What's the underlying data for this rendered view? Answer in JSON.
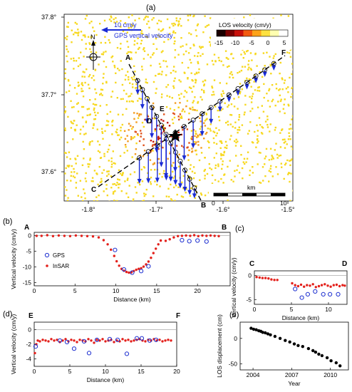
{
  "panel_labels": [
    "(a)",
    "(b)",
    "(c)",
    "(d)",
    "(e)"
  ],
  "map": {
    "north_label": "N",
    "gps_scale_label": "10 cm/y",
    "gps_legend_label": "GPS vertical velocity",
    "colorbar_title": "LOS velocity (cm/y)",
    "colorbar_ticks": [
      "-15",
      "-10",
      "-5",
      "0",
      "5"
    ],
    "colorbar_colors": [
      "#1a0000",
      "#7a0000",
      "#c8100a",
      "#f25a10",
      "#fda31a",
      "#fde140",
      "#ffffb0",
      "#ffffff"
    ],
    "scalebar_title": "km",
    "scalebar_ticks": [
      "0",
      "10"
    ],
    "x_ticks": [
      "-1.8°",
      "-1.7°",
      "-1.6°",
      "-1.5°"
    ],
    "y_ticks": [
      "37.8°",
      "37.7°",
      "37.6°"
    ],
    "profile_labels": [
      "A",
      "B",
      "C",
      "D",
      "E",
      "F"
    ],
    "background_color": "#ffffff",
    "field_color": "#f7d81e",
    "subsidence_color": "#c41a0c",
    "gps_arrow_color": "#1a2bd6"
  },
  "chart_data": [
    {
      "panel": "(b)",
      "type": "scatter",
      "profile": [
        "A",
        "B"
      ],
      "xlabel": "Distance (km)",
      "ylabel": "Vertical velocity (cm/y)",
      "xlim": [
        0,
        24
      ],
      "ylim": [
        -16,
        1
      ],
      "xticks": [
        0,
        5,
        10,
        15,
        20
      ],
      "yticks": [
        0,
        -5,
        -10,
        -15
      ],
      "legend": [
        "GPS",
        "InSAR"
      ],
      "series": [
        {
          "name": "InSAR",
          "x": [
            0.3,
            0.9,
            1.6,
            2.3,
            3.0,
            3.7,
            4.4,
            5.1,
            5.8,
            6.5,
            7.2,
            7.9,
            8.5,
            9.0,
            9.4,
            9.8,
            10.1,
            10.4,
            10.7,
            11.0,
            11.3,
            11.6,
            11.9,
            12.2,
            12.5,
            12.8,
            13.1,
            13.4,
            13.7,
            14.0,
            14.3,
            14.6,
            14.9,
            15.2,
            15.5,
            16.1,
            16.6,
            17.1,
            17.6,
            18.1,
            18.6,
            19.1,
            19.6,
            20.1,
            20.6,
            21.1,
            21.6,
            22.1,
            22.6
          ],
          "y": [
            -0.1,
            -0.1,
            0.1,
            -0.2,
            0.0,
            -0.1,
            -0.2,
            0.0,
            -0.1,
            -0.2,
            -0.3,
            -0.6,
            -1.5,
            -2.8,
            -4.5,
            -6.5,
            -8.2,
            -9.6,
            -10.6,
            -11.2,
            -11.6,
            -11.8,
            -11.7,
            -11.3,
            -10.9,
            -10.6,
            -10.4,
            -9.9,
            -9.2,
            -8.3,
            -7.1,
            -5.6,
            -4.2,
            -2.8,
            -1.6,
            -1.7,
            -1.2,
            -0.6,
            -0.2,
            -0.1,
            0.0,
            -0.1,
            0.1,
            -0.2,
            0.0,
            -0.1,
            0.0,
            -0.1,
            -0.2
          ]
        },
        {
          "name": "GPS",
          "x": [
            9.9,
            11.0,
            12.0,
            13.1,
            14.0,
            18.1,
            19.0,
            20.0,
            21.1
          ],
          "y": [
            -4.6,
            -10.8,
            -11.8,
            -11.3,
            -9.8,
            -1.5,
            -1.8,
            -1.6,
            -1.9
          ]
        }
      ]
    },
    {
      "panel": "(c)",
      "type": "scatter",
      "profile": [
        "C",
        "D"
      ],
      "xlabel": "Distance (km)",
      "ylabel": "Vertical velocity (cm/y)",
      "xlim": [
        0,
        12.5
      ],
      "ylim": [
        -6,
        1
      ],
      "xticks": [
        0,
        5,
        10
      ],
      "yticks": [
        0,
        -5
      ],
      "series": [
        {
          "name": "InSAR",
          "x": [
            0.3,
            0.7,
            1.1,
            1.5,
            1.9,
            2.3,
            2.7,
            3.1,
            5.1,
            5.5,
            5.9,
            6.3,
            6.7,
            7.1,
            7.5,
            7.9,
            8.3,
            8.7,
            9.1,
            9.5,
            9.9,
            10.3,
            10.7,
            11.1,
            11.5,
            11.9,
            12.2
          ],
          "y": [
            -0.3,
            -0.4,
            -0.5,
            -0.5,
            -0.6,
            -0.8,
            -0.9,
            -0.9,
            -1.6,
            -2.0,
            -2.2,
            -1.9,
            -2.3,
            -2.0,
            -2.1,
            -1.8,
            -2.4,
            -2.2,
            -2.0,
            -1.8,
            -2.1,
            -2.3,
            -2.0,
            -1.9,
            -2.2,
            -2.0,
            -2.1
          ]
        },
        {
          "name": "GPS",
          "x": [
            5.5,
            6.4,
            7.2,
            8.2,
            9.3,
            10.2,
            11.3
          ],
          "y": [
            -2.8,
            -4.6,
            -3.9,
            -3.3,
            -3.9,
            -3.9,
            -3.9
          ]
        }
      ]
    },
    {
      "panel": "(d)",
      "type": "scatter",
      "profile": [
        "E",
        "F"
      ],
      "xlabel": "Distance (km)",
      "ylabel": "Vertical velocity (cm/y)",
      "xlim": [
        0,
        20
      ],
      "ylim": [
        -5,
        1
      ],
      "xticks": [
        0,
        5,
        10,
        15,
        20
      ],
      "yticks": [
        0,
        -2,
        -4
      ],
      "series": [
        {
          "name": "InSAR",
          "x": [
            0.1,
            0.3,
            0.5,
            0.8,
            1.2,
            1.6,
            2.0,
            2.4,
            2.8,
            3.2,
            3.6,
            4.0,
            4.4,
            4.8,
            5.2,
            5.6,
            6.0,
            6.4,
            6.8,
            7.2,
            7.6,
            8.0,
            8.4,
            8.8,
            9.2,
            9.6,
            10.0,
            10.4,
            10.8,
            11.2,
            11.6,
            12.0,
            12.4,
            12.8,
            13.2,
            13.6,
            14.0,
            14.4,
            14.8,
            15.2,
            15.6,
            16.0,
            16.4,
            16.8,
            17.2,
            17.6,
            18.0,
            18.4,
            18.8,
            19.2
          ],
          "y": [
            -3.2,
            -2.0,
            -1.5,
            -1.6,
            -1.4,
            -1.5,
            -1.6,
            -1.3,
            -1.5,
            -1.4,
            -1.7,
            -1.5,
            -1.3,
            -1.6,
            -1.4,
            -1.5,
            -1.7,
            -1.4,
            -1.5,
            -1.6,
            -1.3,
            -1.5,
            -1.8,
            -1.4,
            -1.5,
            -1.3,
            -1.6,
            -1.5,
            -1.4,
            -1.7,
            -1.5,
            -1.6,
            -1.3,
            -1.5,
            -1.4,
            -1.6,
            -1.5,
            -1.4,
            -1.3,
            -1.5,
            -1.6,
            -1.4,
            -1.5,
            -1.3,
            -1.5,
            -1.4,
            -1.6,
            -1.5,
            -1.4,
            -1.5
          ]
        },
        {
          "name": "GPS",
          "x": [
            0.2,
            3.6,
            4.6,
            5.6,
            7.0,
            7.7,
            8.8,
            10.6,
            11.7,
            13.0,
            14.4,
            15.1,
            16.2,
            17.1
          ],
          "y": [
            -2.3,
            -1.5,
            -1.7,
            -2.6,
            -1.6,
            -3.2,
            -1.4,
            -1.3,
            -1.4,
            -3.3,
            -1.2,
            -1.2,
            -1.5,
            -1.4
          ]
        }
      ]
    },
    {
      "panel": "(e)",
      "type": "scatter",
      "xlabel": "Year",
      "ylabel": "LOS displacement (cm)",
      "xlim": [
        2003,
        2011.4
      ],
      "ylim": [
        -62,
        32
      ],
      "xticks": [
        2004,
        2007,
        2010
      ],
      "yticks": [
        0,
        -50
      ],
      "series": [
        {
          "name": "LOS",
          "x": [
            2003.85,
            2004.05,
            2004.25,
            2004.45,
            2004.6,
            2004.75,
            2004.95,
            2005.15,
            2005.35,
            2005.7,
            2006.1,
            2006.5,
            2006.85,
            2007.2,
            2007.5,
            2007.85,
            2008.3,
            2008.65,
            2008.85,
            2009.1,
            2009.35,
            2009.75,
            2010.05,
            2010.45,
            2010.75
          ],
          "y": [
            20,
            18,
            17,
            15,
            14,
            12,
            11,
            9,
            7,
            4,
            0,
            -4,
            -7,
            -11,
            -14,
            -16,
            -20,
            -24,
            -27,
            -31,
            -34,
            -38,
            -44,
            -48,
            -54
          ]
        }
      ]
    }
  ]
}
